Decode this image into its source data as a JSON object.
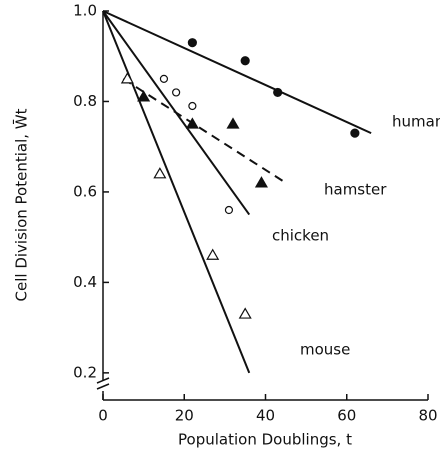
{
  "chart_data": {
    "type": "scatter",
    "xlabel": "Population Doublings, t",
    "ylabel": "Cell Division Potential, W̄t",
    "xlim": [
      0,
      80
    ],
    "xticks": [
      0,
      20,
      40,
      60,
      80
    ],
    "ylim": [
      0.14,
      1.0
    ],
    "yticks": [
      0.2,
      0.4,
      0.6,
      0.8,
      {
        "value": 1.0,
        "label": "1.0"
      }
    ],
    "series": [
      {
        "name": "human",
        "color": "#111111",
        "marker": "circle",
        "filled": true,
        "x": [
          22,
          35,
          43,
          62
        ],
        "values": [
          0.93,
          0.89,
          0.82,
          0.73
        ],
        "fit": {
          "dashed": false,
          "x": [
            0,
            66
          ],
          "values": [
            1.0,
            0.73
          ]
        }
      },
      {
        "name": "hamster",
        "color": "#111111",
        "marker": "triangle",
        "filled": true,
        "x": [
          10,
          22,
          32,
          39
        ],
        "values": [
          0.81,
          0.75,
          0.75,
          0.62
        ],
        "fit": {
          "dashed": true,
          "x": [
            5,
            45
          ],
          "values": [
            0.85,
            0.62
          ]
        }
      },
      {
        "name": "chicken",
        "color": "#111111",
        "marker": "circle",
        "filled": false,
        "x": [
          15,
          18,
          22,
          31
        ],
        "values": [
          0.85,
          0.82,
          0.79,
          0.56
        ],
        "fit": {
          "dashed": false,
          "x": [
            0,
            36
          ],
          "values": [
            1.0,
            0.55
          ]
        }
      },
      {
        "name": "mouse",
        "color": "#111111",
        "marker": "triangle",
        "filled": false,
        "x": [
          6,
          14,
          27,
          35
        ],
        "values": [
          0.85,
          0.64,
          0.46,
          0.33
        ],
        "fit": {
          "dashed": false,
          "x": [
            0,
            36
          ],
          "values": [
            1.0,
            0.2
          ]
        }
      }
    ]
  }
}
